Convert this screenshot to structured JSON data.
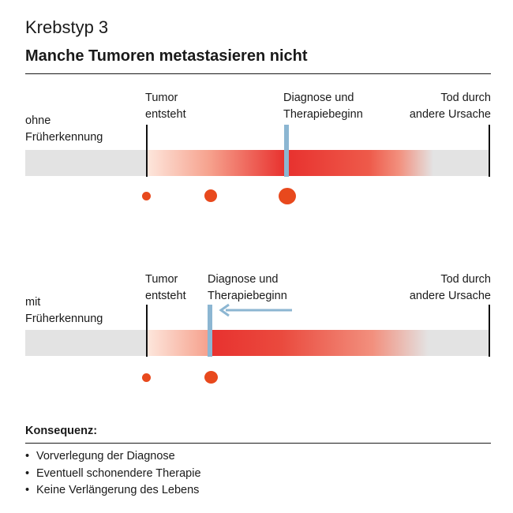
{
  "kicker": "Krebstyp 3",
  "headline": "Manche Tumoren metastasieren nicht",
  "scenario_without": {
    "row_label": [
      "ohne",
      "Früherkennung"
    ],
    "tumor_label": [
      "Tumor",
      "entsteht"
    ],
    "diagnosis_label": [
      "Diagnose und",
      "Therapiebeginn"
    ],
    "death_label": [
      "Tod durch",
      "andere Ursache"
    ]
  },
  "scenario_with": {
    "row_label": [
      "mit",
      "Früherkennung"
    ],
    "tumor_label": [
      "Tumor",
      "entsteht"
    ],
    "diagnosis_label": [
      "Diagnose und",
      "Therapiebeginn"
    ],
    "death_label": [
      "Tod durch",
      "andere Ursache"
    ]
  },
  "consequence": {
    "title": "Konsequenz:",
    "items": [
      "Vorverlegung der Diagnose",
      "Eventuell schonendere Therapie",
      "Keine Verlängerung des Lebens"
    ]
  },
  "colors": {
    "bar_gray": "#e3e3e3",
    "tumor_red": "#e8322f",
    "marker_blue": "#8cb6d2",
    "dot_orange": "#e8491d",
    "ink": "#1a1a1a"
  }
}
